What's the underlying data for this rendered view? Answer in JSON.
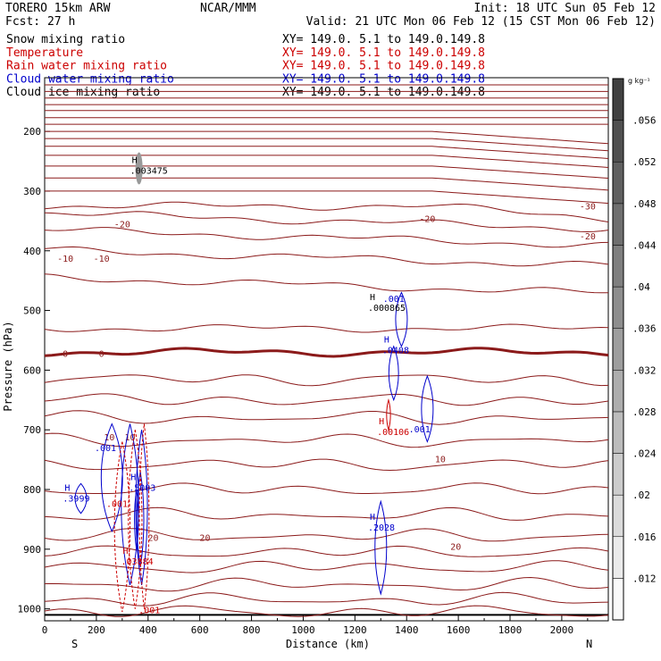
{
  "header": {
    "model": "TORERO  15km ARW",
    "org": "NCAR/MMM",
    "init": "Init: 18 UTC Sun 05 Feb 12",
    "fcst": "Fcst:    27 h",
    "valid": "Valid: 21 UTC Mon 06 Feb 12 (15 CST Mon 06 Feb 12)"
  },
  "fields": [
    {
      "label": "Snow mixing ratio",
      "xy": "XY= 149.0.  5.1 to 149.0.149.8",
      "color": "#000000"
    },
    {
      "label": "Temperature",
      "xy": "XY= 149.0.  5.1 to 149.0.149.8",
      "color": "#cc0000"
    },
    {
      "label": "Rain water mixing ratio",
      "xy": "XY= 149.0.  5.1 to 149.0.149.8",
      "color": "#cc0000"
    },
    {
      "label": "Cloud water mixing ratio",
      "xy": "XY= 149.0.  5.1 to 149.0.149.8",
      "color": "#0000cc"
    },
    {
      "label": "Cloud ice mixing ratio",
      "xy": "XY= 149.0.  5.1 to 149.0.149.8",
      "color": "#000000"
    }
  ],
  "chart_data": {
    "type": "cross-section",
    "xlabel": "Distance (km)",
    "ylabel": "Pressure (hPa)",
    "xlim": [
      0,
      2180
    ],
    "ylim": [
      1020,
      110
    ],
    "x_ticks": [
      0,
      200,
      400,
      600,
      800,
      1000,
      1200,
      1400,
      1600,
      1800,
      2000
    ],
    "y_ticks": [
      200,
      300,
      400,
      500,
      600,
      700,
      800,
      900,
      1000
    ],
    "endpoints": {
      "left": "S",
      "right": "N"
    },
    "colorbar": {
      "unit": "g kg⁻¹",
      "ticks": [
        ".012",
        ".016",
        ".02",
        ".024",
        ".028",
        ".032",
        ".036",
        ".04",
        ".044",
        ".048",
        ".052",
        ".056"
      ],
      "low": 0.01,
      "high": 0.058
    },
    "temperature_contours": {
      "color": "#8b1a1a",
      "levels_p": [
        122,
        133,
        144,
        155,
        165,
        177,
        188,
        200,
        212,
        225,
        240,
        258,
        278,
        300,
        325,
        350,
        378,
        412,
        458,
        530,
        570,
        615,
        650,
        680,
        718,
        758,
        800,
        843,
        878,
        905,
        930,
        960,
        985,
        1005
      ],
      "freezing_level_p": 574,
      "labels": [
        {
          "text": "-30",
          "x": 2100,
          "p": 325
        },
        {
          "text": "-20",
          "x": 300,
          "p": 355
        },
        {
          "text": "-20",
          "x": 1480,
          "p": 346
        },
        {
          "text": "-20",
          "x": 2100,
          "p": 375
        },
        {
          "text": "-10",
          "x": 80,
          "p": 412
        },
        {
          "text": "-10",
          "x": 220,
          "p": 412
        },
        {
          "text": "0",
          "x": 80,
          "p": 572
        },
        {
          "text": "0",
          "x": 220,
          "p": 572
        },
        {
          "text": "10",
          "x": 250,
          "p": 712
        },
        {
          "text": "10",
          "x": 330,
          "p": 712
        },
        {
          "text": "10",
          "x": 1530,
          "p": 748
        },
        {
          "text": "20",
          "x": 420,
          "p": 880
        },
        {
          "text": "20",
          "x": 620,
          "p": 880
        },
        {
          "text": "20",
          "x": 1590,
          "p": 895
        }
      ]
    },
    "maxima": [
      {
        "field": "Snow mixing ratio",
        "mark": "H",
        "value": ".003475",
        "x": 365,
        "p": 262,
        "color": "#000000"
      },
      {
        "field": "Cloud ice mixing ratio",
        "mark": "H",
        "value": ".000865",
        "x": 1285,
        "p": 492,
        "color": "#000000"
      },
      {
        "field": "Cloud water mixing ratio",
        "mark": "H",
        "value": ".0408",
        "x": 1340,
        "p": 563,
        "color": "#0000cc"
      },
      {
        "field": "Rain water mixing ratio",
        "mark": "H",
        "value": ".00106",
        "x": 1320,
        "p": 700,
        "color": "#cc0000"
      },
      {
        "field": "Cloud water mixing ratio",
        "mark": "H",
        "value": ".3999",
        "x": 105,
        "p": 811,
        "color": "#0000cc"
      },
      {
        "field": "Cloud water mixing ratio",
        "mark": "H",
        "value": ".5003",
        "x": 360,
        "p": 793,
        "color": "#0000cc"
      },
      {
        "field": "Rain water mixing ratio",
        "mark": "H",
        "value": ".03884",
        "x": 330,
        "p": 917,
        "color": "#cc0000"
      },
      {
        "field": "Cloud water mixing ratio",
        "mark": "H",
        "value": ".2028",
        "x": 1285,
        "p": 860,
        "color": "#0000cc"
      }
    ],
    "contour_labels": [
      {
        "text": ".001",
        "x": 1350,
        "p": 480,
        "color": "#0000cc"
      },
      {
        "text": ".001",
        "x": 1450,
        "p": 698,
        "color": "#0000cc"
      },
      {
        "text": ".001",
        "x": 235,
        "p": 730,
        "color": "#0000cc"
      },
      {
        "text": ".001",
        "x": 280,
        "p": 823,
        "color": "#cc0000"
      },
      {
        "text": ".001",
        "x": 405,
        "p": 1001,
        "color": "#cc0000"
      }
    ]
  }
}
